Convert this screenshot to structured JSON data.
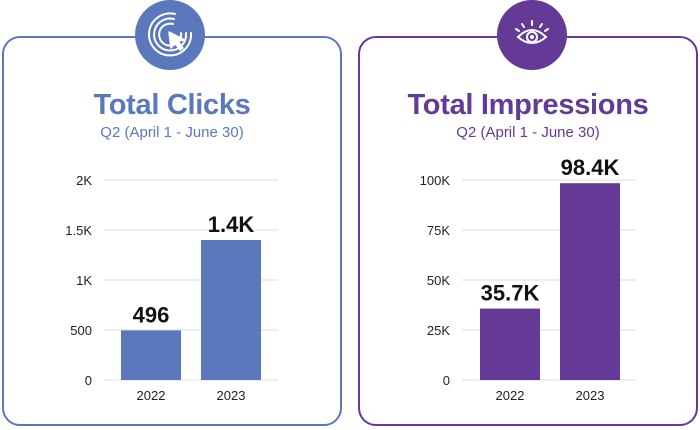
{
  "icons": {
    "clicks": "cursor-click-icon",
    "impressions": "eye-icon"
  },
  "colors": {
    "clicks": "#5b78bd",
    "impressions": "#643a96",
    "grid": "#dddddd",
    "axis_text": "#222222",
    "label_text": "#111111"
  },
  "cards": [
    {
      "title": "Total Clicks",
      "subtitle": "Q2 (April 1 - June 30)"
    },
    {
      "title": "Total Impressions",
      "subtitle": "Q2 (April 1 - June 30)"
    }
  ],
  "chart_data": [
    {
      "type": "bar",
      "title": "Total Clicks",
      "subtitle": "Q2 (April 1 - June 30)",
      "categories": [
        "2022",
        "2023"
      ],
      "values": [
        496,
        1400
      ],
      "data_labels": [
        "496",
        "1.4K"
      ],
      "ylim": [
        0,
        2000
      ],
      "yticks": [
        0,
        500,
        1000,
        1500,
        2000
      ],
      "ytick_labels": [
        "0",
        "500",
        "1K",
        "1.5K",
        "2K"
      ],
      "grid": true,
      "color": "#5b78bd"
    },
    {
      "type": "bar",
      "title": "Total Impressions",
      "subtitle": "Q2 (April 1 - June 30)",
      "categories": [
        "2022",
        "2023"
      ],
      "values": [
        35700,
        98400
      ],
      "data_labels": [
        "35.7K",
        "98.4K"
      ],
      "ylim": [
        0,
        100000
      ],
      "yticks": [
        0,
        25000,
        50000,
        75000,
        100000
      ],
      "ytick_labels": [
        "0",
        "25K",
        "50K",
        "75K",
        "100K"
      ],
      "grid": true,
      "color": "#643a96"
    }
  ]
}
